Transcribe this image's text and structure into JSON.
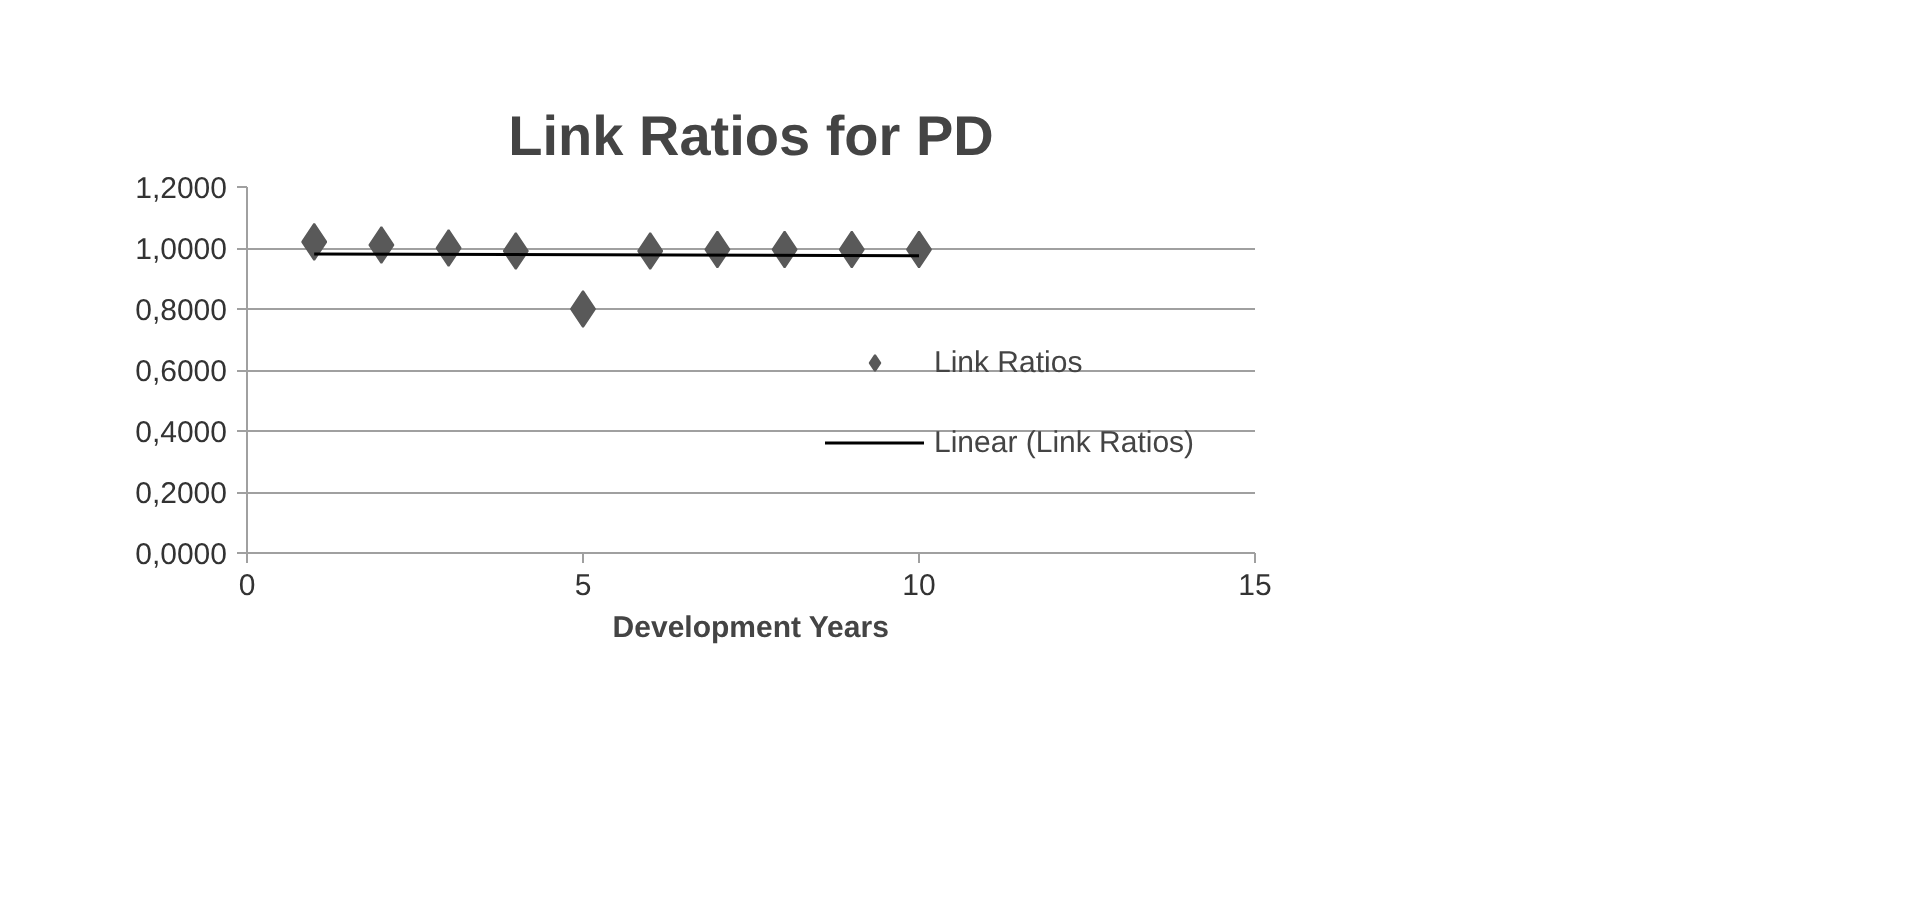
{
  "chart_data": {
    "type": "scatter",
    "title": "Link Ratios for PD",
    "xlabel": "Development Years",
    "series": [
      {
        "name": "Link Ratios",
        "color": "#595959",
        "marker": "diamond",
        "x": [
          1,
          2,
          3,
          4,
          5,
          6,
          7,
          8,
          9,
          10
        ],
        "values": [
          1.02,
          1.01,
          1.0,
          0.99,
          0.8,
          0.99,
          0.995,
          0.995,
          0.995,
          0.995
        ]
      },
      {
        "name": "Linear (Link Ratios)",
        "type": "line",
        "color": "#000000",
        "line_style": "solid",
        "x": [
          1,
          10
        ],
        "values": [
          0.98,
          0.975
        ]
      }
    ],
    "xlim": [
      0,
      15
    ],
    "xticks": [
      0,
      5,
      10,
      15
    ],
    "ylim": [
      0,
      1.2
    ],
    "yticks": [
      {
        "value": 0,
        "label": "0,0000"
      },
      {
        "value": 0.2,
        "label": "0,2000"
      },
      {
        "value": 0.4,
        "label": "0,4000"
      },
      {
        "value": 0.6,
        "label": "0,6000"
      },
      {
        "value": 0.8,
        "label": "0,8000"
      },
      {
        "value": 1.0,
        "label": "1,0000"
      },
      {
        "value": 1.2,
        "label": "1,2000"
      }
    ],
    "grid": "y",
    "legend": "right"
  }
}
